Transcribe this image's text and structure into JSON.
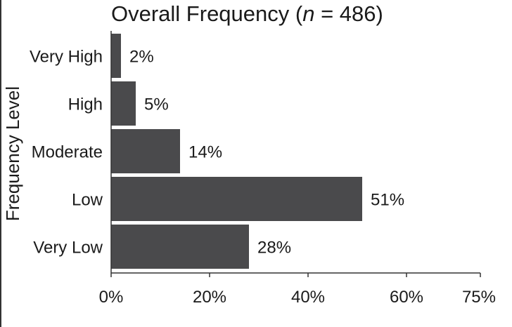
{
  "chart_data": {
    "type": "bar",
    "orientation": "horizontal",
    "title": "Overall Frequency (",
    "title_n_symbol": "n",
    "title_n_rest": " = 486)",
    "ylabel": "Frequency Level",
    "xlabel": "",
    "categories": [
      "Very High",
      "High",
      "Moderate",
      "Low",
      "Very Low"
    ],
    "values": [
      2,
      5,
      14,
      51,
      28
    ],
    "data_labels": [
      "2%",
      "5%",
      "14%",
      "51%",
      "28%"
    ],
    "xlim": [
      0,
      75
    ],
    "x_ticks": [
      0,
      20,
      40,
      60,
      75
    ],
    "x_tick_labels": [
      "0%",
      "20%",
      "40%",
      "60%",
      "75%"
    ],
    "grid": false,
    "bar_color": "#4a4a4c"
  }
}
